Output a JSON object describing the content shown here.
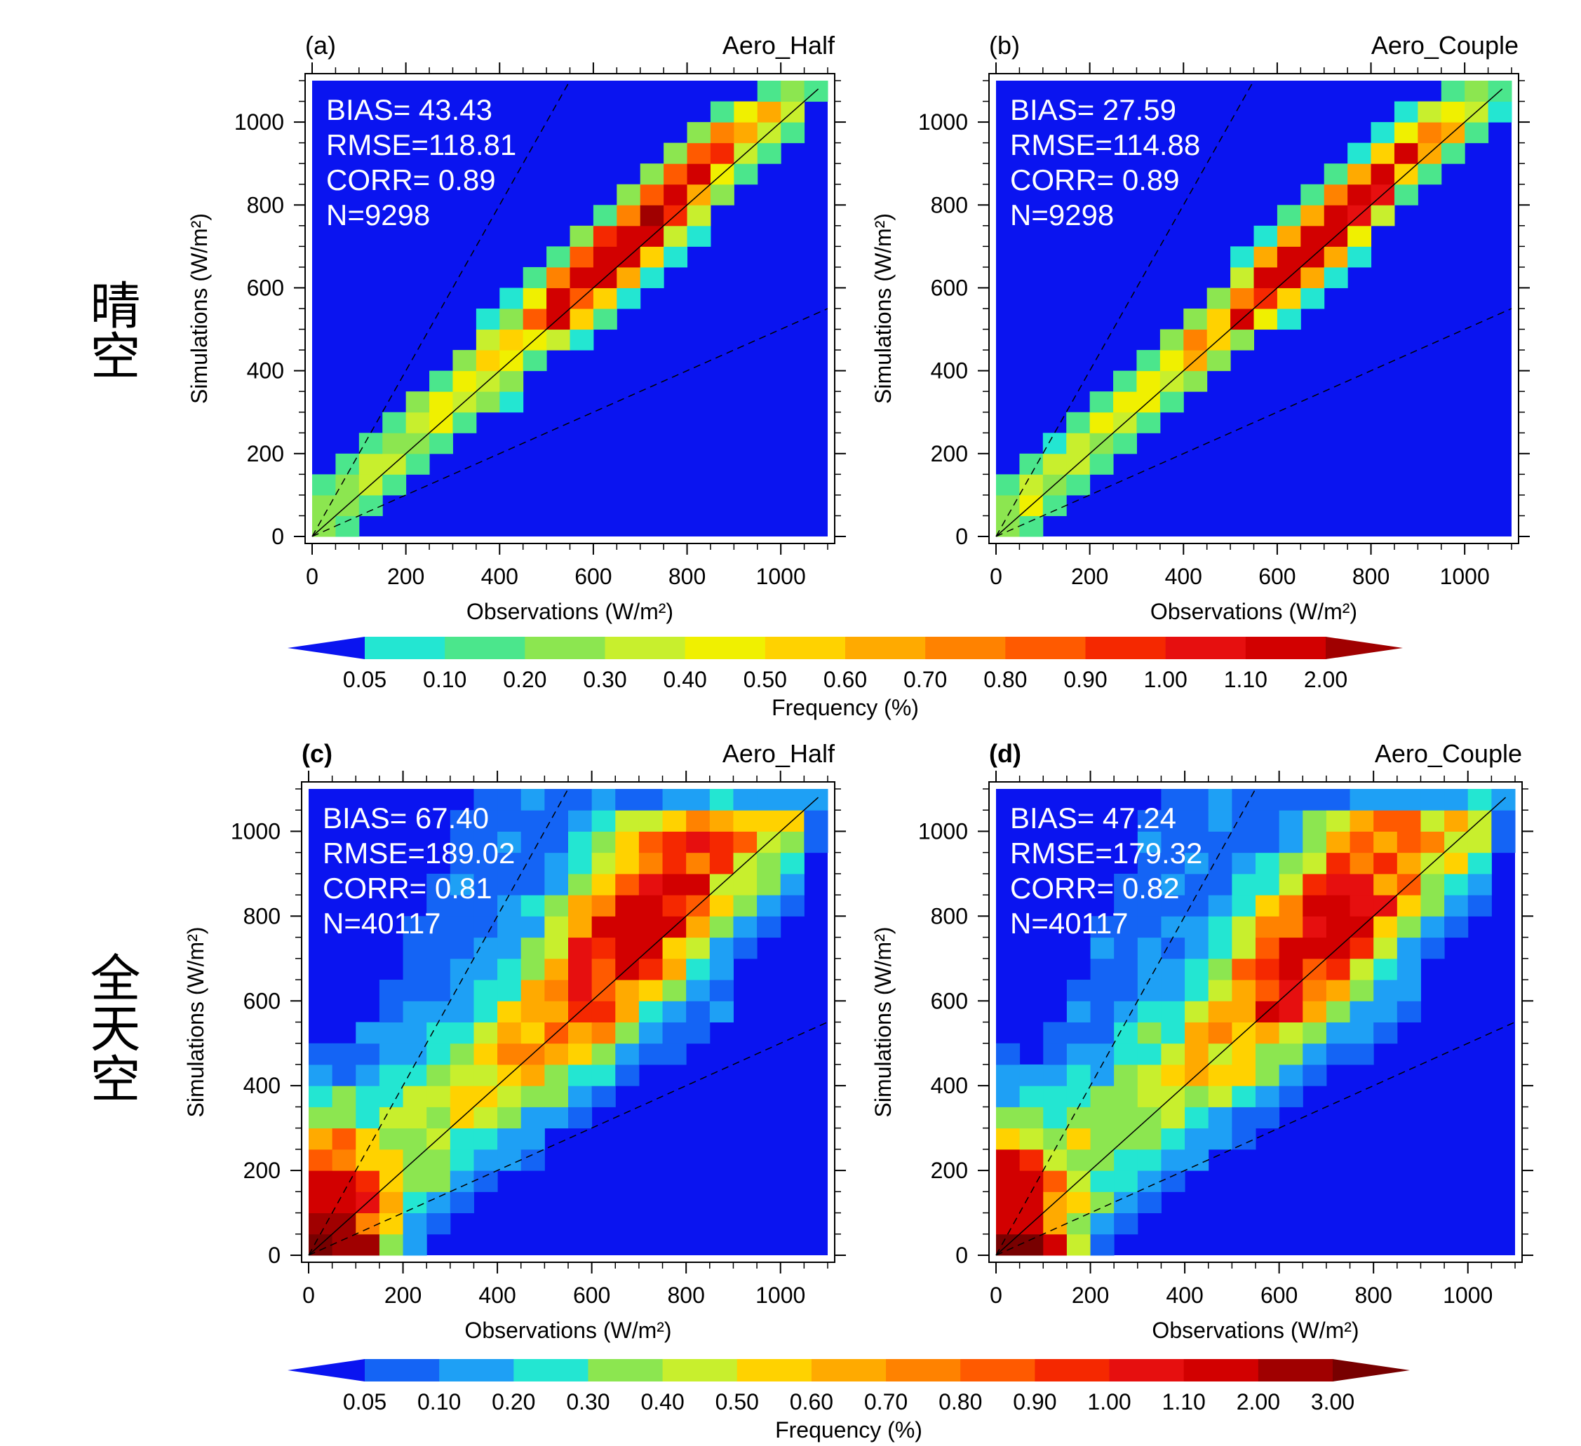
{
  "figure": {
    "row_labels": [
      "晴空",
      "全天空"
    ]
  },
  "chart_data": [
    {
      "type": "heatmap",
      "panel_label": "(a)",
      "title": "Aero_Half",
      "xlabel": "Observations (W/m²)",
      "ylabel": "Simulations (W/m²)",
      "xlim": [
        0,
        1100
      ],
      "ylim": [
        0,
        1100
      ],
      "xticks": [
        0,
        200,
        400,
        600,
        800,
        1000
      ],
      "yticks": [
        0,
        200,
        400,
        600,
        800,
        1000
      ],
      "stats": [
        "BIAS= 43.43",
        "RMSE=118.81",
        "CORR=  0.89",
        "N=9298"
      ],
      "seed": 11,
      "hist": {
        "spread": 58,
        "extra_spread": 0,
        "core": 0.75,
        "upper_bias": 0.2,
        "low_boost": 0,
        "bg": 0
      },
      "reference_lines": [
        "1:1",
        "2:1",
        "1:2"
      ]
    },
    {
      "type": "heatmap",
      "panel_label": "(b)",
      "title": "Aero_Couple",
      "xlabel": "Observations (W/m²)",
      "ylabel": "Simulations (W/m²)",
      "xlim": [
        0,
        1100
      ],
      "ylim": [
        0,
        1100
      ],
      "xticks": [
        0,
        200,
        400,
        600,
        800,
        1000
      ],
      "yticks": [
        0,
        200,
        400,
        600,
        800,
        1000
      ],
      "stats": [
        "BIAS= 27.59",
        "RMSE=114.88",
        "CORR=  0.89",
        "N=9298"
      ],
      "seed": 23,
      "hist": {
        "spread": 52,
        "extra_spread": 0,
        "core": 0.8,
        "upper_bias": 0.12,
        "low_boost": 0,
        "bg": 0
      },
      "reference_lines": [
        "1:1",
        "2:1",
        "1:2"
      ]
    },
    {
      "type": "heatmap",
      "panel_label": "(c)",
      "title": "Aero_Half",
      "xlabel": "Observations (W/m²)",
      "ylabel": "Simulations (W/m²)",
      "xlim": [
        0,
        1100
      ],
      "ylim": [
        0,
        1100
      ],
      "xticks": [
        0,
        200,
        400,
        600,
        800,
        1000
      ],
      "yticks": [
        0,
        200,
        400,
        600,
        800,
        1000
      ],
      "stats": [
        "BIAS= 67.40",
        "RMSE=189.02",
        "CORR=  0.81",
        "N=40117"
      ],
      "seed": 37,
      "hist": {
        "spread": 95,
        "extra_spread": 90,
        "core": 0.45,
        "upper_bias": 0.35,
        "low_boost": 1.0,
        "bg": 1
      },
      "reference_lines": [
        "1:1",
        "2:1",
        "1:2"
      ]
    },
    {
      "type": "heatmap",
      "panel_label": "(d)",
      "title": "Aero_Couple",
      "xlabel": "Observations (W/m²)",
      "ylabel": "Simulations (W/m²)",
      "xlim": [
        0,
        1100
      ],
      "ylim": [
        0,
        1100
      ],
      "xticks": [
        0,
        200,
        400,
        600,
        800,
        1000
      ],
      "yticks": [
        0,
        200,
        400,
        600,
        800,
        1000
      ],
      "stats": [
        "BIAS= 47.24",
        "RMSE=179.32",
        "CORR=  0.82",
        "N=40117"
      ],
      "seed": 53,
      "hist": {
        "spread": 90,
        "extra_spread": 85,
        "core": 0.45,
        "upper_bias": 0.28,
        "low_boost": 0.9,
        "bg": 1
      },
      "reference_lines": [
        "1:1",
        "2:1",
        "1:2"
      ]
    }
  ],
  "colorbars": [
    {
      "label": "Frequency (%)",
      "labels": [
        "0.05",
        "0.10",
        "0.20",
        "0.30",
        "0.40",
        "0.50",
        "0.60",
        "0.70",
        "0.80",
        "0.90",
        "1.00",
        "1.10",
        "2.00"
      ],
      "colors": [
        "#0a14f0",
        "#23e6d2",
        "#4be68c",
        "#8ce650",
        "#c8ef2d",
        "#f0f000",
        "#ffd200",
        "#ffaa00",
        "#ff8200",
        "#ff5a00",
        "#f52800",
        "#e60f0f",
        "#d20000",
        "#a00000"
      ]
    },
    {
      "label": "Frequency (%)",
      "labels": [
        "0.05",
        "0.10",
        "0.20",
        "0.30",
        "0.40",
        "0.50",
        "0.60",
        "0.70",
        "0.80",
        "0.90",
        "1.00",
        "1.10",
        "2.00",
        "3.00"
      ],
      "colors": [
        "#0a14f0",
        "#1464f5",
        "#1ea0f5",
        "#23e6d2",
        "#8ce650",
        "#c8ef2d",
        "#ffd200",
        "#ffaa00",
        "#ff8200",
        "#ff5a00",
        "#f52800",
        "#e60f0f",
        "#d20000",
        "#a00000",
        "#780000"
      ]
    }
  ]
}
